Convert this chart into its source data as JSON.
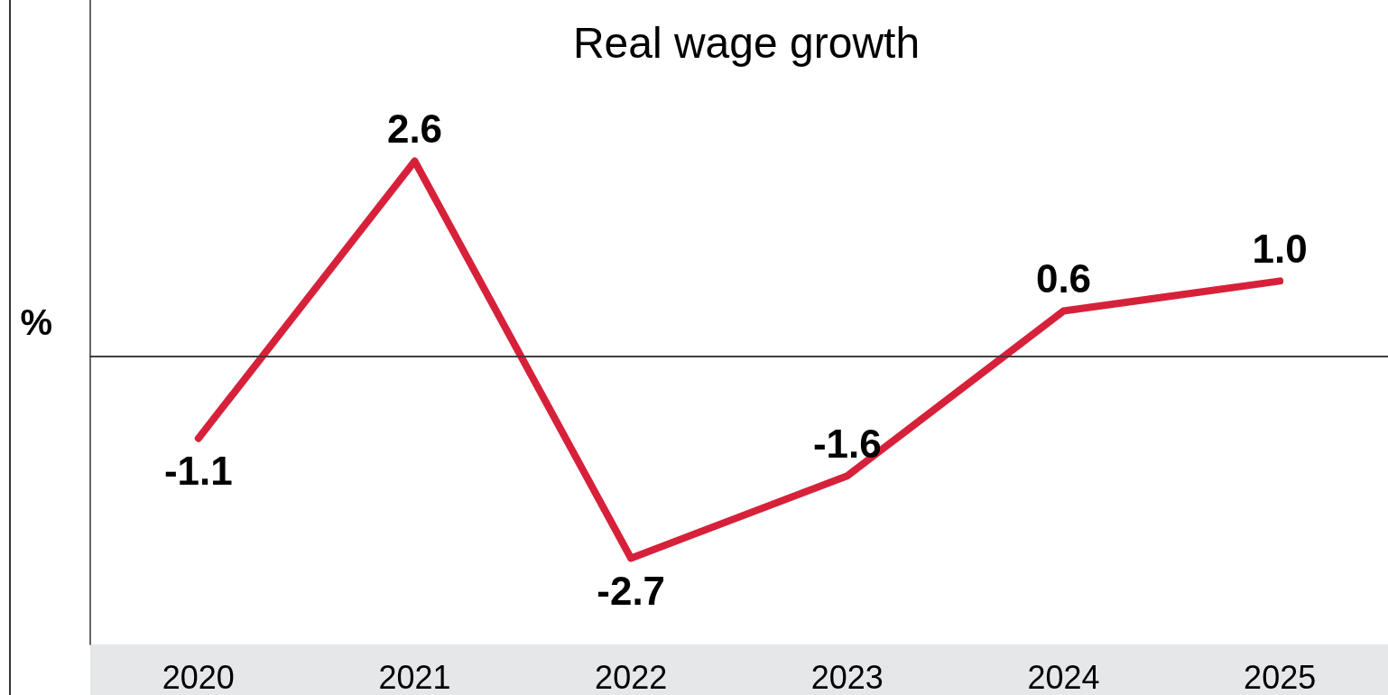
{
  "chart_data": {
    "type": "line",
    "title": "Real wage growth",
    "ylabel": "%",
    "categories": [
      "2020",
      "2021",
      "2022",
      "2023",
      "2024",
      "2025"
    ],
    "series": [
      {
        "color": "#d7213a",
        "values": [
          -1.1,
          2.6,
          -2.7,
          -1.6,
          0.6,
          1.0
        ],
        "value_labels": [
          "-1.1",
          "2.6",
          "-2.7",
          "-1.6",
          "0.6",
          "1.0"
        ]
      }
    ],
    "ylim": [
      -3.85,
      4.75
    ],
    "tick_labels": "x",
    "ref_lines": [
      {
        "axis": "y",
        "value": 0,
        "color": "#333333"
      }
    ]
  }
}
